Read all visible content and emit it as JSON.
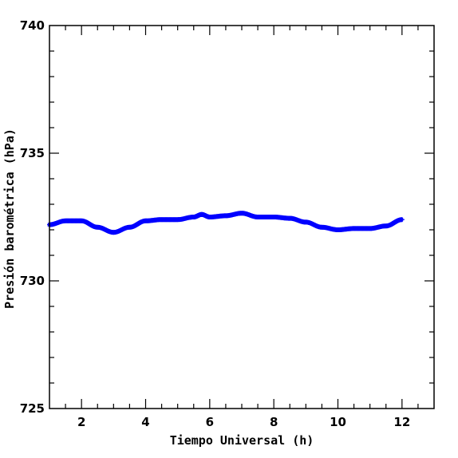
{
  "chart_data": {
    "type": "scatter",
    "xlabel": "Tiempo Universal (h)",
    "ylabel": "Presión barométrica (hPa)",
    "xlim": [
      1,
      13
    ],
    "ylim": [
      725,
      740
    ],
    "x_ticks": [
      2,
      4,
      6,
      8,
      10,
      12
    ],
    "y_ticks": [
      725,
      730,
      735,
      740
    ],
    "x_tick_labels": [
      "2",
      "4",
      "6",
      "8",
      "10",
      "12"
    ],
    "y_tick_labels": [
      "725",
      "730",
      "735",
      "740"
    ],
    "marker_color": "#0000ff",
    "series": [
      {
        "x": [
          1.0,
          1.5,
          2.0,
          2.5,
          3.0,
          3.5,
          4.0,
          4.5,
          5.0,
          5.5,
          5.75,
          6.0,
          6.5,
          7.0,
          7.5,
          8.0,
          8.5,
          9.0,
          9.5,
          10.0,
          10.5,
          11.0,
          11.5,
          12.0
        ],
        "y": [
          732.2,
          732.35,
          732.35,
          732.1,
          731.9,
          732.1,
          732.35,
          732.4,
          732.4,
          732.5,
          732.6,
          732.5,
          732.55,
          732.65,
          732.5,
          732.5,
          732.45,
          732.3,
          732.1,
          732.0,
          732.05,
          732.05,
          732.15,
          732.4
        ]
      }
    ]
  }
}
